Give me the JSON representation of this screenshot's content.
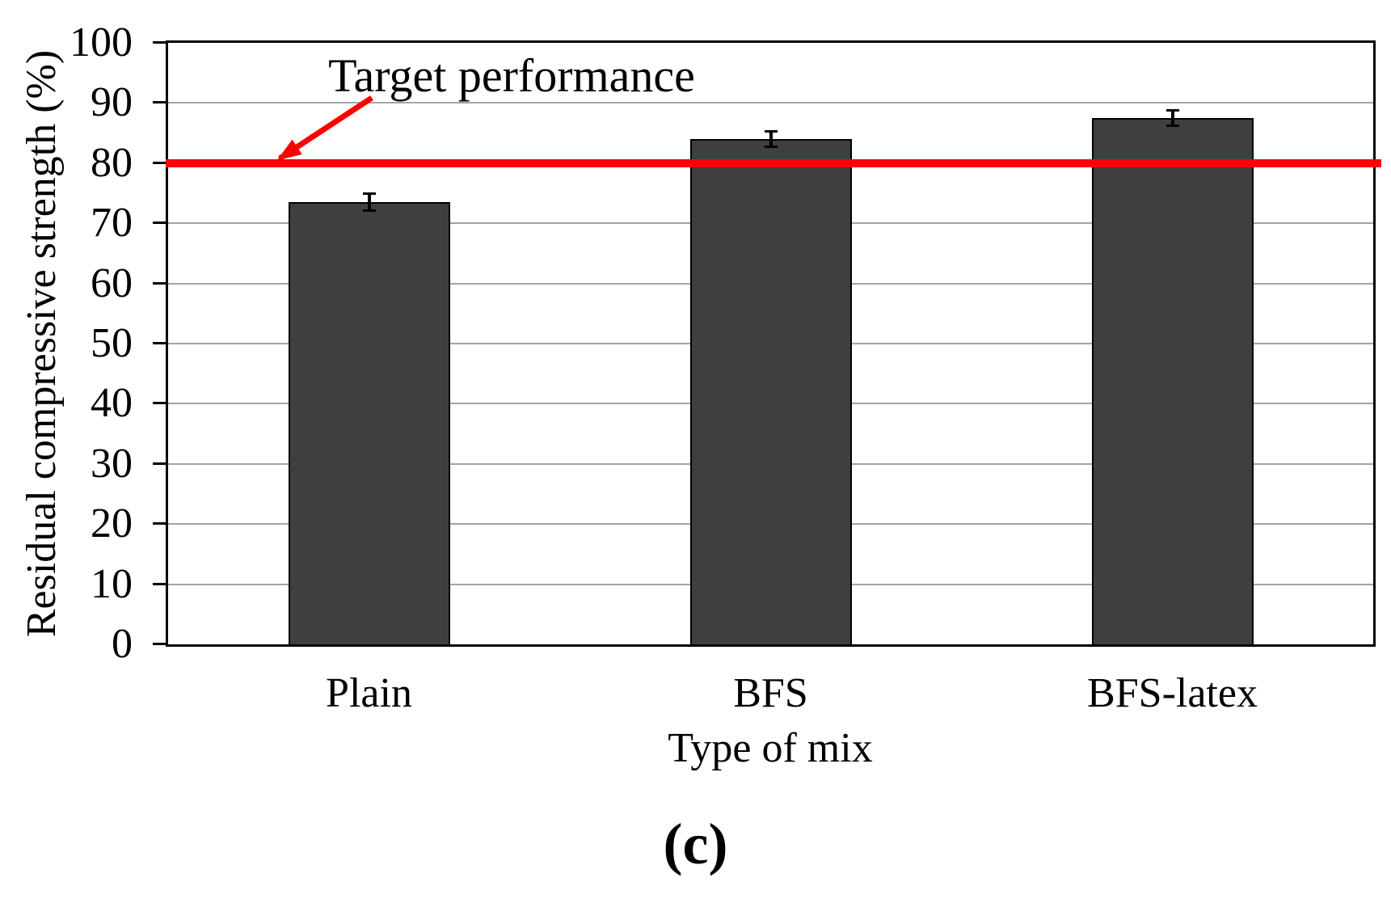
{
  "figure": {
    "caption": "(c)"
  },
  "colors": {
    "background": "#FFFFFF",
    "bar_fill": "#3F3F3F",
    "bar_border": "#000000",
    "target_line": "#FF0000",
    "gridline": "#A3A3A3",
    "axis": "#000000",
    "text": "#000000"
  },
  "chart_data": {
    "type": "bar",
    "title": "",
    "categories": [
      "Plain",
      "BFS",
      "BFS-latex"
    ],
    "values": [
      73.5,
      84,
      87.5
    ],
    "error_bars": [
      1.5,
      1.3,
      1.3
    ],
    "xlabel": "Type of mix",
    "ylabel": "Residual compressive strength (%)",
    "ylim": [
      0,
      100
    ],
    "yticks": [
      0,
      10,
      20,
      30,
      40,
      50,
      60,
      70,
      80,
      90,
      100
    ],
    "grid": "horizontal",
    "legend": "none",
    "target_line": {
      "value": 80,
      "label": "Target performance"
    }
  }
}
